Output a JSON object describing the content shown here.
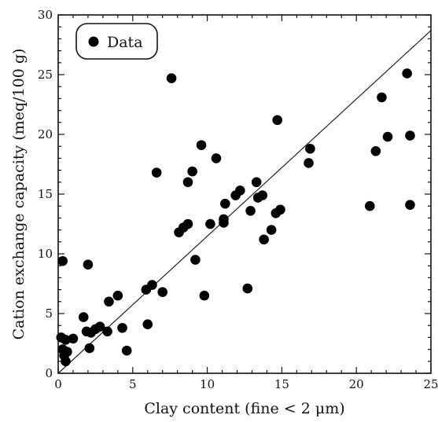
{
  "chart_data": {
    "type": "scatter",
    "xlabel": "Clay content (fine < 2 μm)",
    "ylabel": "Cation exchange capacity (meq/100 g)",
    "xlim": [
      0,
      25
    ],
    "ylim": [
      0,
      30
    ],
    "xticks": [
      0,
      5,
      10,
      15,
      20,
      25
    ],
    "yticks": [
      0,
      5,
      10,
      15,
      20,
      25,
      30
    ],
    "grid": false,
    "legend_position": "top-left",
    "series": [
      {
        "name": "Data",
        "color": "#000000",
        "points": [
          [
            0.3,
            9.4
          ],
          [
            0.2,
            3.0
          ],
          [
            0.3,
            2.0
          ],
          [
            0.4,
            1.5
          ],
          [
            0.5,
            1.0
          ],
          [
            0.6,
            1.8
          ],
          [
            0.5,
            2.8
          ],
          [
            1.0,
            2.9
          ],
          [
            1.7,
            4.7
          ],
          [
            1.9,
            3.5
          ],
          [
            2.0,
            9.1
          ],
          [
            2.2,
            3.4
          ],
          [
            2.1,
            2.1
          ],
          [
            2.5,
            3.7
          ],
          [
            2.8,
            3.9
          ],
          [
            3.3,
            3.5
          ],
          [
            3.4,
            6.0
          ],
          [
            4.0,
            6.5
          ],
          [
            4.3,
            3.8
          ],
          [
            4.6,
            1.9
          ],
          [
            5.9,
            7.0
          ],
          [
            6.0,
            4.1
          ],
          [
            6.3,
            7.4
          ],
          [
            6.6,
            16.8
          ],
          [
            7.0,
            6.8
          ],
          [
            7.6,
            24.7
          ],
          [
            8.1,
            11.8
          ],
          [
            8.4,
            12.2
          ],
          [
            8.7,
            12.5
          ],
          [
            8.7,
            16.0
          ],
          [
            9.0,
            16.9
          ],
          [
            9.2,
            9.5
          ],
          [
            9.6,
            19.1
          ],
          [
            9.8,
            6.5
          ],
          [
            10.2,
            12.5
          ],
          [
            10.6,
            18.0
          ],
          [
            11.1,
            12.6
          ],
          [
            11.1,
            12.9
          ],
          [
            11.2,
            14.2
          ],
          [
            11.9,
            14.9
          ],
          [
            12.2,
            15.3
          ],
          [
            12.7,
            7.1
          ],
          [
            12.9,
            13.6
          ],
          [
            13.3,
            16.0
          ],
          [
            13.4,
            14.7
          ],
          [
            13.7,
            14.9
          ],
          [
            13.8,
            11.2
          ],
          [
            14.3,
            12.0
          ],
          [
            14.6,
            13.4
          ],
          [
            14.7,
            21.2
          ],
          [
            14.9,
            13.7
          ],
          [
            16.8,
            17.6
          ],
          [
            16.9,
            18.8
          ],
          [
            20.9,
            14.0
          ],
          [
            21.3,
            18.6
          ],
          [
            21.7,
            23.1
          ],
          [
            22.1,
            19.8
          ],
          [
            23.4,
            25.1
          ],
          [
            23.6,
            19.9
          ],
          [
            23.6,
            14.1
          ]
        ]
      }
    ],
    "annotations": [
      {
        "type": "line",
        "from": [
          0,
          0
        ],
        "to": [
          25,
          28.7
        ]
      }
    ]
  }
}
